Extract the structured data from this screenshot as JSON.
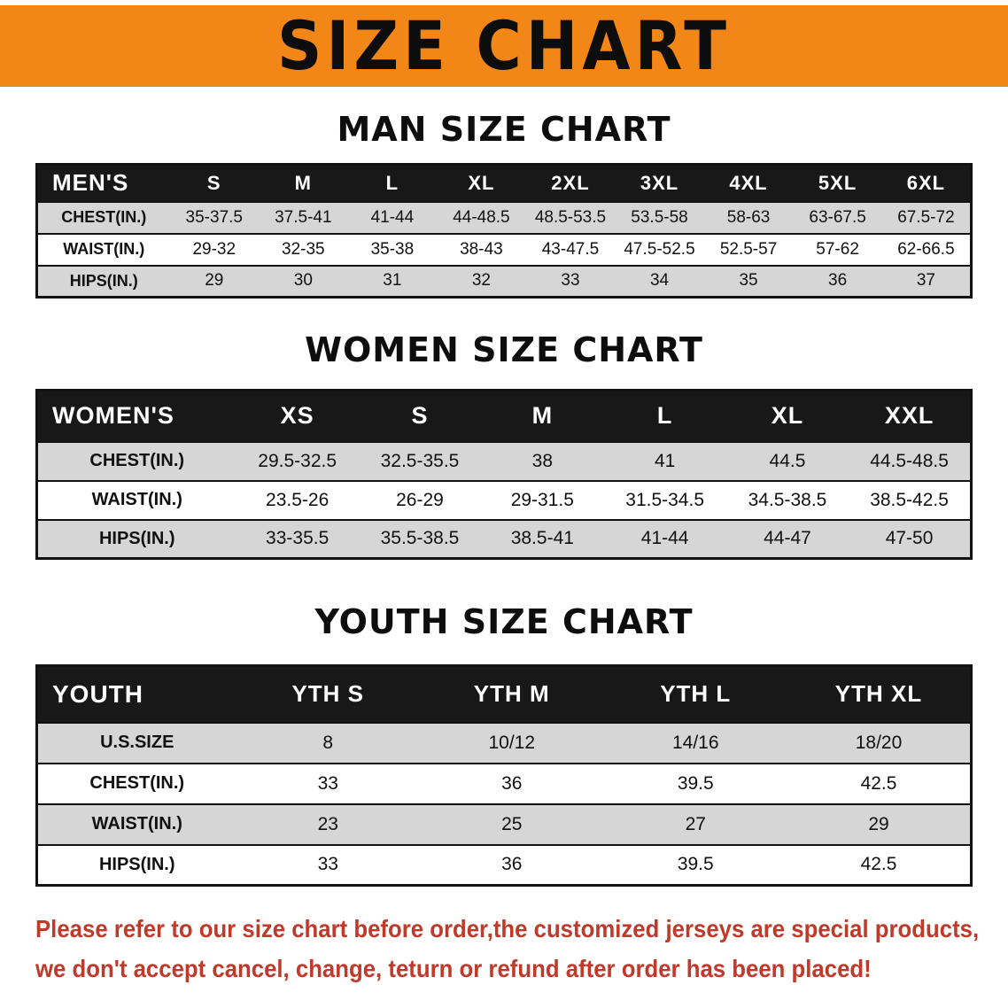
{
  "banner": {
    "title": "SIZE CHART"
  },
  "colors": {
    "banner_bg": "#f28718",
    "table_header_bg": "#181818",
    "row_alt_gray": "#d6d6d6",
    "disclaimer_red": "#bf3a2b"
  },
  "sections": [
    {
      "heading": "MAN SIZE CHART",
      "table": {
        "header": [
          "MEN'S",
          "S",
          "M",
          "L",
          "XL",
          "2XL",
          "3XL",
          "4XL",
          "5XL",
          "6XL"
        ],
        "rows": [
          [
            "CHEST(IN.)",
            "35-37.5",
            "37.5-41",
            "41-44",
            "44-48.5",
            "48.5-53.5",
            "53.5-58",
            "58-63",
            "63-67.5",
            "67.5-72"
          ],
          [
            "WAIST(IN.)",
            "29-32",
            "32-35",
            "35-38",
            "38-43",
            "43-47.5",
            "47.5-52.5",
            "52.5-57",
            "57-62",
            "62-66.5"
          ],
          [
            "HIPS(IN.)",
            "29",
            "30",
            "31",
            "32",
            "33",
            "34",
            "35",
            "36",
            "37"
          ]
        ]
      }
    },
    {
      "heading": "WOMEN SIZE CHART",
      "table": {
        "header": [
          "WOMEN'S",
          "XS",
          "S",
          "M",
          "L",
          "XL",
          "XXL"
        ],
        "rows": [
          [
            "CHEST(IN.)",
            "29.5-32.5",
            "32.5-35.5",
            "38",
            "41",
            "44.5",
            "44.5-48.5"
          ],
          [
            "WAIST(IN.)",
            "23.5-26",
            "26-29",
            "29-31.5",
            "31.5-34.5",
            "34.5-38.5",
            "38.5-42.5"
          ],
          [
            "HIPS(IN.)",
            "33-35.5",
            "35.5-38.5",
            "38.5-41",
            "41-44",
            "44-47",
            "47-50"
          ]
        ]
      }
    },
    {
      "heading": "YOUTH SIZE CHART",
      "table": {
        "header": [
          "YOUTH",
          "YTH S",
          "YTH M",
          "YTH L",
          "YTH XL"
        ],
        "rows": [
          [
            "U.S.SIZE",
            "8",
            "10/12",
            "14/16",
            "18/20"
          ],
          [
            "CHEST(IN.)",
            "33",
            "36",
            "39.5",
            "42.5"
          ],
          [
            "WAIST(IN.)",
            "23",
            "25",
            "27",
            "29"
          ],
          [
            "HIPS(IN.)",
            "33",
            "36",
            "39.5",
            "42.5"
          ]
        ]
      }
    }
  ],
  "disclaimer": {
    "lines": [
      "Please refer to our size chart before order,the customized jerseys are special products,",
      "we don't accept cancel, change, teturn or refund after order has been placed!"
    ]
  }
}
